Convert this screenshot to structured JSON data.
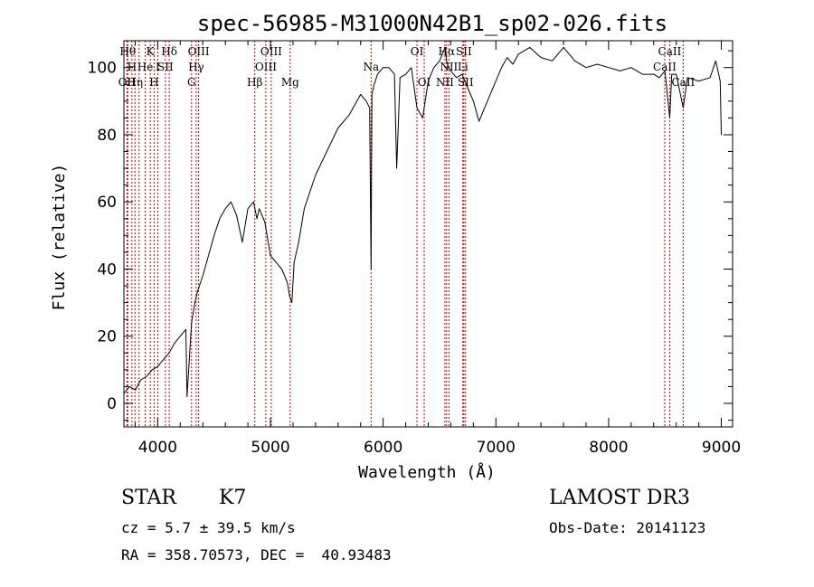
{
  "chart_data": {
    "type": "line",
    "title": "spec-56985-M31000N42B1_sp02-026.fits",
    "xlabel": "Wavelength (Å)",
    "ylabel": "Flux (relative)",
    "xlim": [
      3700,
      9100
    ],
    "ylim": [
      -7,
      108
    ],
    "x_ticks": [
      4000,
      5000,
      6000,
      7000,
      8000,
      9000
    ],
    "y_ticks": [
      0,
      20,
      40,
      60,
      80,
      100
    ],
    "grid": false,
    "series": [
      {
        "color": "#000000",
        "x": [
          3700,
          3750,
          3800,
          3850,
          3900,
          3950,
          4000,
          4050,
          4100,
          4150,
          4200,
          4250,
          4260,
          4300,
          4330,
          4350,
          4400,
          4450,
          4500,
          4550,
          4600,
          4650,
          4700,
          4750,
          4800,
          4850,
          4880,
          4900,
          4950,
          5000,
          5050,
          5100,
          5150,
          5170,
          5190,
          5210,
          5250,
          5300,
          5400,
          5500,
          5600,
          5700,
          5800,
          5850,
          5880,
          5893,
          5900,
          5920,
          5950,
          6000,
          6050,
          6100,
          6120,
          6150,
          6200,
          6250,
          6300,
          6350,
          6400,
          6450,
          6500,
          6550,
          6563,
          6580,
          6600,
          6650,
          6700,
          6750,
          6800,
          6850,
          6900,
          6950,
          7000,
          7050,
          7100,
          7150,
          7200,
          7300,
          7400,
          7500,
          7600,
          7700,
          7800,
          7900,
          8000,
          8100,
          8200,
          8300,
          8400,
          8450,
          8500,
          8542,
          8560,
          8600,
          8662,
          8700,
          8800,
          8900,
          8950,
          8990,
          9000
        ],
        "values": [
          3,
          5,
          4,
          7,
          8,
          10,
          11,
          13,
          15,
          18,
          20,
          22,
          2,
          24,
          30,
          33,
          38,
          44,
          50,
          55,
          58,
          60,
          56,
          48,
          58,
          60,
          55,
          58,
          54,
          44,
          42,
          40,
          36,
          32,
          30,
          42,
          48,
          58,
          68,
          75,
          82,
          86,
          92,
          90,
          88,
          40,
          92,
          95,
          98,
          100,
          100,
          98,
          70,
          97,
          98,
          100,
          88,
          85,
          96,
          100,
          102,
          106,
          102,
          100,
          99,
          97,
          98,
          94,
          90,
          84,
          88,
          92,
          96,
          100,
          103,
          101,
          104,
          106,
          103,
          102,
          106,
          102,
          100,
          101,
          100,
          99,
          100,
          98,
          98,
          97,
          99,
          85,
          98,
          98,
          88,
          97,
          96,
          97,
          102,
          96,
          80
        ]
      }
    ],
    "lines": [
      {
        "x": 3734,
        "label": "Hθ",
        "row": 0
      },
      {
        "x": 3771,
        "label": "H",
        "row": 1
      },
      {
        "x": 3727,
        "label": "OII",
        "row": 2
      },
      {
        "x": 3798,
        "label": "Hη",
        "row": 2
      },
      {
        "x": 3835,
        "label": "",
        "row": 2
      },
      {
        "x": 3889,
        "label": "He",
        "row": 1
      },
      {
        "x": 3934,
        "label": "K",
        "row": 0
      },
      {
        "x": 3968,
        "label": "H",
        "row": 2
      },
      {
        "x": 4000,
        "label": "I",
        "row": 1
      },
      {
        "x": 4068,
        "label": "SII",
        "row": 1
      },
      {
        "x": 4102,
        "label": "Hδ",
        "row": 0
      },
      {
        "x": 4300,
        "label": "G",
        "row": 2
      },
      {
        "x": 4341,
        "label": "Hγ",
        "row": 1
      },
      {
        "x": 4363,
        "label": "OIII",
        "row": 0
      },
      {
        "x": 4861,
        "label": "Hβ",
        "row": 2
      },
      {
        "x": 4959,
        "label": "OIII",
        "row": 1
      },
      {
        "x": 5007,
        "label": "OIII",
        "row": 0
      },
      {
        "x": 5175,
        "label": "Mg",
        "row": 2
      },
      {
        "x": 5893,
        "label": "Na",
        "row": 1
      },
      {
        "x": 6300,
        "label": "OI",
        "row": 0
      },
      {
        "x": 6364,
        "label": "OI",
        "row": 2
      },
      {
        "x": 6548,
        "label": "NII",
        "row": 2
      },
      {
        "x": 6563,
        "label": "Hα",
        "row": 0
      },
      {
        "x": 6583,
        "label": "NII",
        "row": 1
      },
      {
        "x": 6707,
        "label": "Li",
        "row": 1
      },
      {
        "x": 6716,
        "label": "SII",
        "row": 0
      },
      {
        "x": 6731,
        "label": "SII",
        "row": 2
      },
      {
        "x": 8498,
        "label": "CaII",
        "row": 1
      },
      {
        "x": 8542,
        "label": "CaII",
        "row": 0
      },
      {
        "x": 8662,
        "label": "CaII",
        "row": 2
      }
    ]
  },
  "info": {
    "object_class": "STAR",
    "subclass": "K7",
    "survey": "LAMOST DR3",
    "cz": "cz = 5.7 ± 39.5 km/s",
    "obs_date": "Obs-Date: 20141123",
    "coords": "RA = 358.70573, DEC =  40.93483"
  }
}
